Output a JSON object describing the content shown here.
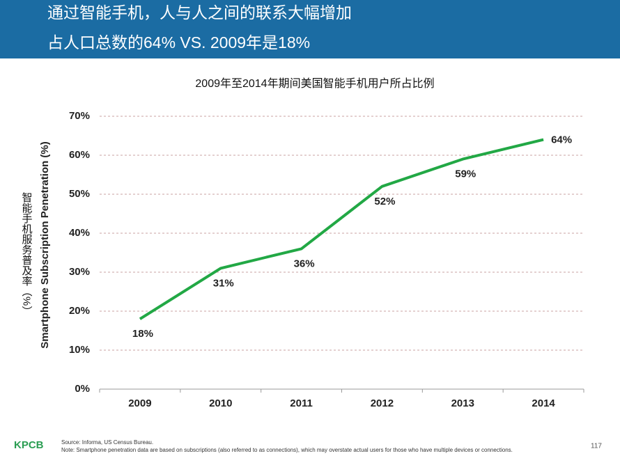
{
  "header": {
    "line1": "通过智能手机，人与人之间的联系大幅增加",
    "line2": "占人口总数的64% VS. 2009年是18%"
  },
  "chart_data": {
    "type": "line",
    "title": "2009年至2014年期间美国智能手机用户所占比例",
    "y_label_cn": "智能手机服务普及率（%）",
    "y_label": "Smartphone Subscription Penetration (%)",
    "categories": [
      "2009",
      "2010",
      "2011",
      "2012",
      "2013",
      "2014"
    ],
    "values": [
      18,
      31,
      36,
      52,
      59,
      64
    ],
    "value_labels": [
      "18%",
      "31%",
      "36%",
      "52%",
      "59%",
      "64%"
    ],
    "color": "#22a845",
    "ylim": [
      0,
      70
    ],
    "yticks": [
      {
        "value": 0,
        "label": "0%"
      },
      {
        "value": 10,
        "label": "10%"
      },
      {
        "value": 20,
        "label": "20%"
      },
      {
        "value": 30,
        "label": "30%"
      },
      {
        "value": 40,
        "label": "40%"
      },
      {
        "value": 50,
        "label": "50%"
      },
      {
        "value": 60,
        "label": "60%"
      },
      {
        "value": 70,
        "label": "70%"
      }
    ],
    "grid": true
  },
  "footer": {
    "logo": "KPCB",
    "source": "Source: Informa, US Census Bureau.",
    "note": "Note: Smartphone penetration data are based on subscriptions (also referred to as connections), which may overstate actual users for those who have multiple devices or connections.",
    "page": "117"
  }
}
